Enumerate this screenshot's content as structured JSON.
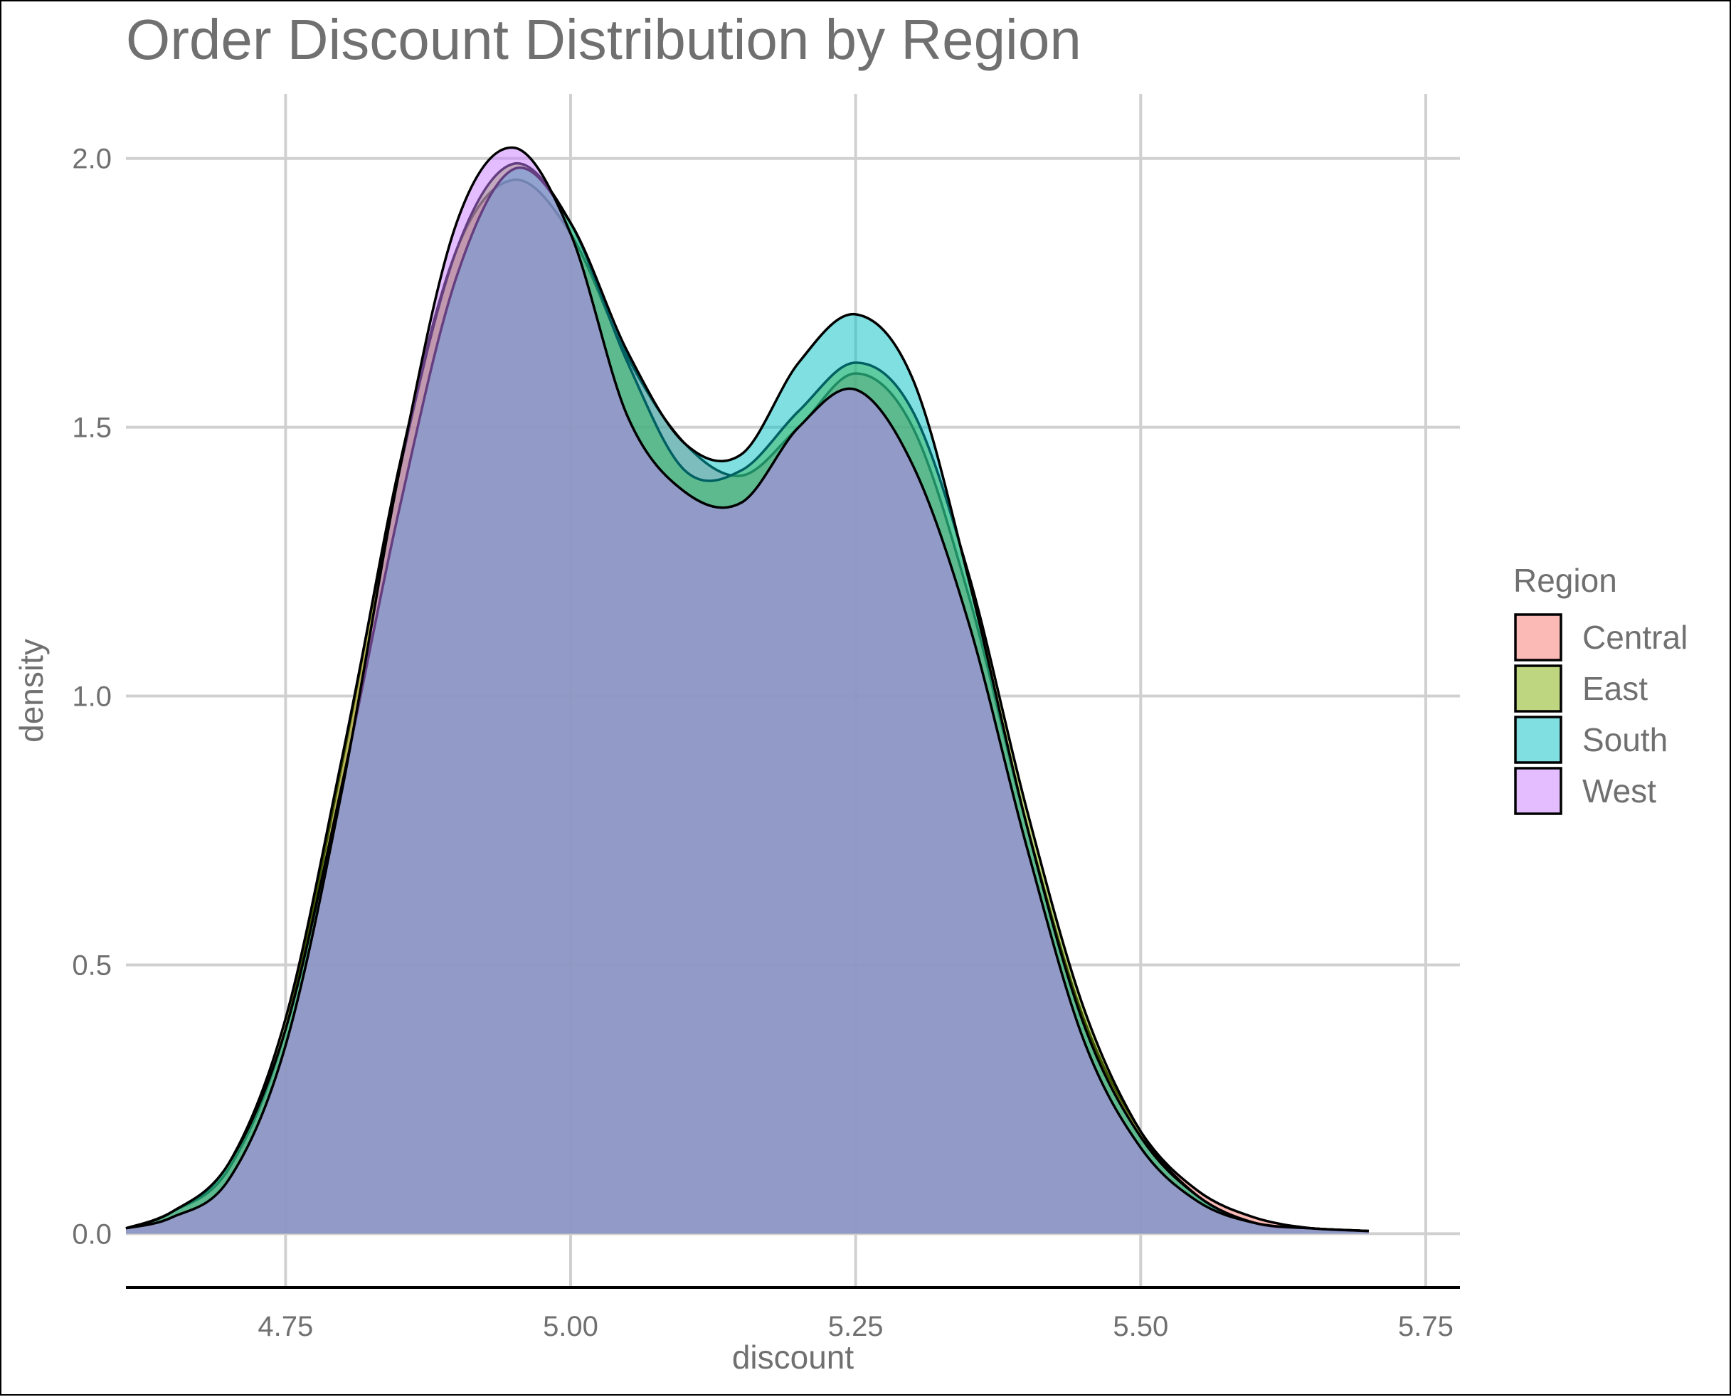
{
  "chart_data": {
    "type": "area",
    "subtype": "density",
    "title": "Order Discount Distribution by Region",
    "xlabel": "discount",
    "ylabel": "density",
    "xlim": [
      4.61,
      5.78
    ],
    "ylim": [
      -0.1,
      2.12
    ],
    "xticks": [
      4.75,
      5.0,
      5.25,
      5.5,
      5.75
    ],
    "xtick_labels": [
      "4.75",
      "5.00",
      "5.25",
      "5.50",
      "5.75"
    ],
    "yticks": [
      0.0,
      0.5,
      1.0,
      1.5,
      2.0
    ],
    "ytick_labels": [
      "0.0",
      "0.5",
      "1.0",
      "1.5",
      "2.0"
    ],
    "grid": true,
    "legend": {
      "title": "Region",
      "position": "right"
    },
    "fill_opacity": 0.5,
    "x": [
      4.61,
      4.65,
      4.7,
      4.75,
      4.8,
      4.85,
      4.9,
      4.95,
      5.0,
      5.05,
      5.1,
      5.15,
      5.2,
      5.25,
      5.3,
      5.35,
      5.4,
      5.45,
      5.5,
      5.55,
      5.6,
      5.65,
      5.7
    ],
    "series": [
      {
        "name": "Central",
        "color": "#F8766D",
        "values": [
          0.01,
          0.04,
          0.12,
          0.38,
          0.88,
          1.43,
          1.83,
          1.96,
          1.86,
          1.63,
          1.47,
          1.41,
          1.5,
          1.6,
          1.5,
          1.18,
          0.76,
          0.4,
          0.19,
          0.08,
          0.03,
          0.01,
          0.005
        ]
      },
      {
        "name": "East",
        "color": "#7CAE00",
        "values": [
          0.01,
          0.04,
          0.13,
          0.4,
          0.89,
          1.42,
          1.83,
          1.99,
          1.88,
          1.62,
          1.42,
          1.42,
          1.53,
          1.62,
          1.53,
          1.22,
          0.79,
          0.42,
          0.19,
          0.07,
          0.02,
          0.01,
          0.005
        ]
      },
      {
        "name": "South",
        "color": "#00BFC4",
        "values": [
          0.01,
          0.04,
          0.13,
          0.38,
          0.84,
          1.35,
          1.78,
          1.98,
          1.88,
          1.64,
          1.47,
          1.45,
          1.62,
          1.71,
          1.59,
          1.21,
          0.76,
          0.39,
          0.18,
          0.07,
          0.02,
          0.01,
          0.005
        ]
      },
      {
        "name": "West",
        "color": "#C77CFF",
        "values": [
          0.01,
          0.03,
          0.1,
          0.35,
          0.83,
          1.42,
          1.88,
          2.02,
          1.86,
          1.52,
          1.38,
          1.36,
          1.5,
          1.57,
          1.43,
          1.13,
          0.72,
          0.36,
          0.16,
          0.06,
          0.02,
          0.01,
          0.005
        ]
      }
    ]
  }
}
